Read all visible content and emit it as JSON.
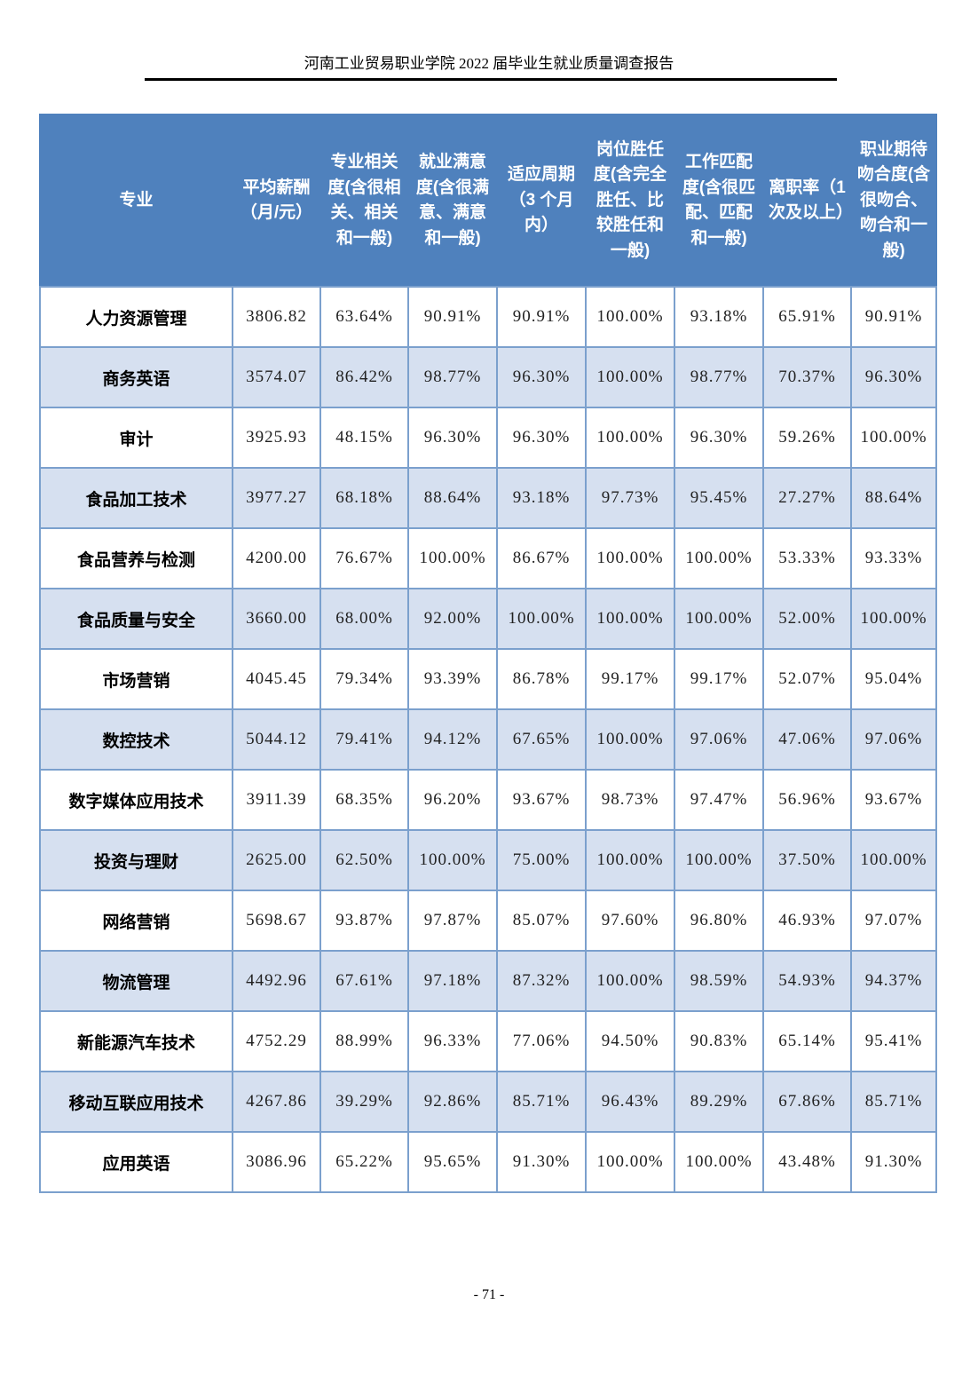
{
  "page": {
    "header_title": "河南工业贸易职业学院 2022 届毕业生就业质量调查报告",
    "footer_page_number": "- 71 -"
  },
  "colors": {
    "table_header_bg": "#4F81BD",
    "table_alt_row_bg": "#D6E0F0",
    "table_border": "#7BA0CD",
    "header_text": "#FFFFFF",
    "rule": "#000000"
  },
  "table": {
    "columns": [
      "专业",
      "平均薪酬（月/元）",
      "专业相关度(含很相关、相关和一般)",
      "就业满意度(含很满意、满意和一般)",
      "适应周期（3 个月内）",
      "岗位胜任度(含完全胜任、比较胜任和一般)",
      "工作匹配度(含很匹配、匹配和一般)",
      "离职率（1 次及以上）",
      "职业期待吻合度(含很吻合、吻合和一般)"
    ],
    "rows": [
      [
        "人力资源管理",
        "3806.82",
        "63.64%",
        "90.91%",
        "90.91%",
        "100.00%",
        "93.18%",
        "65.91%",
        "90.91%"
      ],
      [
        "商务英语",
        "3574.07",
        "86.42%",
        "98.77%",
        "96.30%",
        "100.00%",
        "98.77%",
        "70.37%",
        "96.30%"
      ],
      [
        "审计",
        "3925.93",
        "48.15%",
        "96.30%",
        "96.30%",
        "100.00%",
        "96.30%",
        "59.26%",
        "100.00%"
      ],
      [
        "食品加工技术",
        "3977.27",
        "68.18%",
        "88.64%",
        "93.18%",
        "97.73%",
        "95.45%",
        "27.27%",
        "88.64%"
      ],
      [
        "食品营养与检测",
        "4200.00",
        "76.67%",
        "100.00%",
        "86.67%",
        "100.00%",
        "100.00%",
        "53.33%",
        "93.33%"
      ],
      [
        "食品质量与安全",
        "3660.00",
        "68.00%",
        "92.00%",
        "100.00%",
        "100.00%",
        "100.00%",
        "52.00%",
        "100.00%"
      ],
      [
        "市场营销",
        "4045.45",
        "79.34%",
        "93.39%",
        "86.78%",
        "99.17%",
        "99.17%",
        "52.07%",
        "95.04%"
      ],
      [
        "数控技术",
        "5044.12",
        "79.41%",
        "94.12%",
        "67.65%",
        "100.00%",
        "97.06%",
        "47.06%",
        "97.06%"
      ],
      [
        "数字媒体应用技术",
        "3911.39",
        "68.35%",
        "96.20%",
        "93.67%",
        "98.73%",
        "97.47%",
        "56.96%",
        "93.67%"
      ],
      [
        "投资与理财",
        "2625.00",
        "62.50%",
        "100.00%",
        "75.00%",
        "100.00%",
        "100.00%",
        "37.50%",
        "100.00%"
      ],
      [
        "网络营销",
        "5698.67",
        "93.87%",
        "97.87%",
        "85.07%",
        "97.60%",
        "96.80%",
        "46.93%",
        "97.07%"
      ],
      [
        "物流管理",
        "4492.96",
        "67.61%",
        "97.18%",
        "87.32%",
        "100.00%",
        "98.59%",
        "54.93%",
        "94.37%"
      ],
      [
        "新能源汽车技术",
        "4752.29",
        "88.99%",
        "96.33%",
        "77.06%",
        "94.50%",
        "90.83%",
        "65.14%",
        "95.41%"
      ],
      [
        "移动互联应用技术",
        "4267.86",
        "39.29%",
        "92.86%",
        "85.71%",
        "96.43%",
        "89.29%",
        "67.86%",
        "85.71%"
      ],
      [
        "应用英语",
        "3086.96",
        "65.22%",
        "95.65%",
        "91.30%",
        "100.00%",
        "100.00%",
        "43.48%",
        "91.30%"
      ]
    ]
  }
}
